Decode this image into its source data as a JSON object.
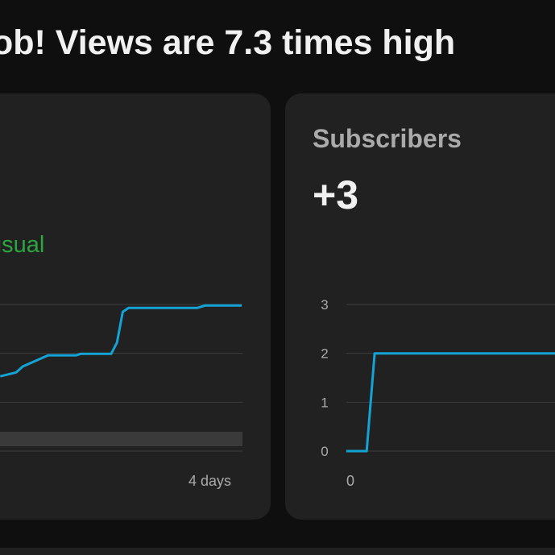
{
  "header": {
    "title": "ob! Views are 7.3 times high"
  },
  "views_card": {
    "note": "usual",
    "chart": {
      "type": "line",
      "xlim": [
        0,
        4
      ],
      "ylim": [
        0,
        3
      ],
      "color": "#15a3d6",
      "grid": true,
      "xticks": [
        {
          "value": 4,
          "label": "4 days"
        }
      ],
      "x": [
        0.67,
        0.89,
        0.98,
        1.33,
        1.72,
        1.78,
        2.2,
        2.28,
        2.36,
        2.44,
        3.39,
        3.5,
        4
      ],
      "values": [
        1.53,
        1.61,
        1.73,
        1.96,
        1.96,
        1.99,
        1.99,
        2.22,
        2.85,
        2.93,
        2.93,
        2.98,
        2.98
      ]
    }
  },
  "subscribers_card": {
    "title": "Subscribers",
    "value": "+3",
    "chart": {
      "type": "line",
      "xlim": [
        0,
        4
      ],
      "ylim": [
        0,
        3
      ],
      "color": "#15a3d6",
      "grid": true,
      "yticks": [
        0,
        1,
        2,
        3
      ],
      "xticks": [
        0
      ],
      "x": [
        0,
        0.28,
        0.39,
        2.9
      ],
      "values": [
        0,
        0,
        2,
        2
      ]
    }
  }
}
